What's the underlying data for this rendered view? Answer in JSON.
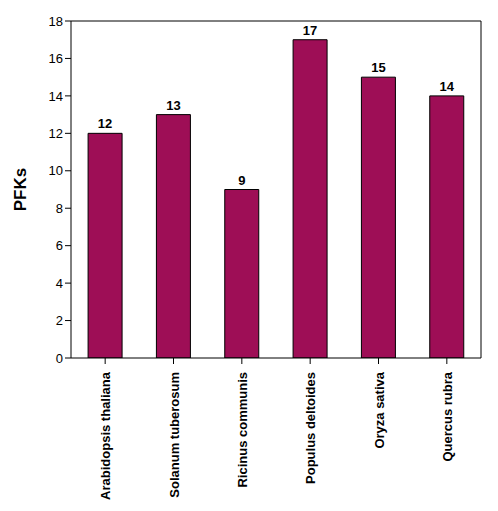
{
  "chart_data": {
    "type": "bar",
    "y_label": "PFKs",
    "categories": [
      "Arabidopsis thaliana",
      "Solanum tuberosum",
      "Ricinus communis",
      "Populus deltoides",
      "Oryza sativa",
      "Quercus rubra"
    ],
    "values": [
      12,
      13,
      9,
      17,
      15,
      14
    ],
    "color": "#9e0e56",
    "ylim": [
      0,
      18
    ],
    "yticks": [
      0,
      2,
      4,
      6,
      8,
      10,
      12,
      14,
      16,
      18
    ],
    "grid": false,
    "data_labels": true
  }
}
